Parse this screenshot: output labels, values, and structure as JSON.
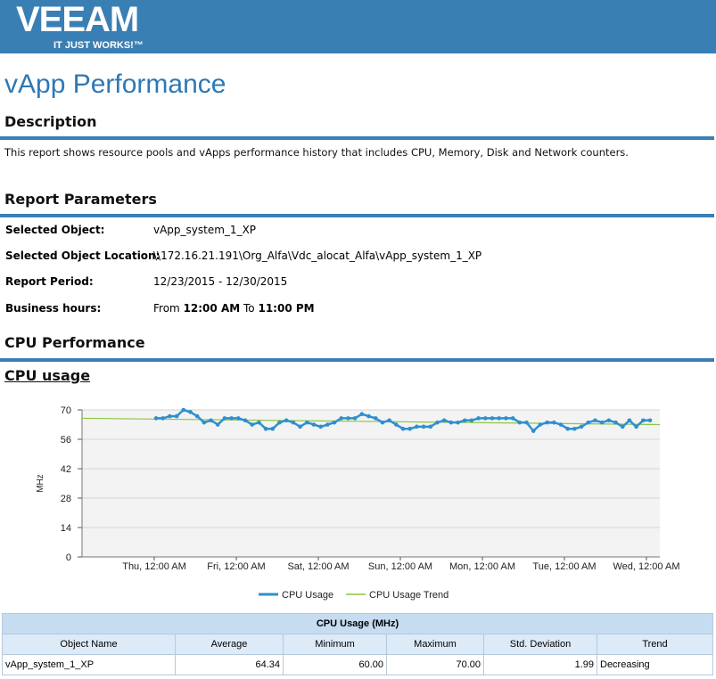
{
  "brand": {
    "logo": "VEEAM",
    "tagline": "IT JUST WORKS!™",
    "color": "#3a7fb4"
  },
  "title": "vApp Performance",
  "description": {
    "heading": "Description",
    "text": "This report shows resource pools and vApps performance history that includes CPU, Memory, Disk and Network counters."
  },
  "parameters": {
    "heading": "Report Parameters",
    "selected_object_label": "Selected Object:",
    "selected_object_value": "vApp_system_1_XP",
    "location_label": "Selected Object Location:",
    "location_value": "\\\\172.16.21.191\\Org_Alfa\\Vdc_alocat_Alfa\\vApp_system_1_XP",
    "period_label": "Report Period:",
    "period_value": "12/23/2015 - 12/30/2015",
    "business_label": "Business hours:",
    "business_from": "From",
    "business_start": "12:00 AM",
    "business_to": "To",
    "business_end": "11:00 PM"
  },
  "cpu": {
    "heading": "CPU Performance",
    "subheading": "CPU usage"
  },
  "chart_data": {
    "type": "line",
    "ylabel": "MHz",
    "ylim": [
      0,
      70
    ],
    "yticks": [
      0,
      14,
      28,
      42,
      56,
      70
    ],
    "xtick_labels": [
      "Thu, 12:00 AM",
      "Fri, 12:00 AM",
      "Sat, 12:00 AM",
      "Sun, 12:00 AM",
      "Mon, 12:00 AM",
      "Tue, 12:00 AM",
      "Wed, 12:00 AM"
    ],
    "grid": true,
    "legend": "bottom",
    "series": [
      {
        "name": "CPU Usage",
        "color": "#2e8fd0",
        "values": [
          66,
          66,
          67,
          67,
          70,
          69,
          67,
          64,
          65,
          63,
          66,
          66,
          66,
          65,
          63,
          64,
          61,
          61,
          64,
          65,
          64,
          62,
          64,
          63,
          62,
          63,
          64,
          66,
          66,
          66,
          68,
          67,
          66,
          64,
          65,
          63,
          61,
          61,
          62,
          62,
          62,
          64,
          65,
          64,
          64,
          65,
          65,
          66,
          66,
          66,
          66,
          66,
          66,
          64,
          64,
          60,
          63,
          64,
          64,
          63,
          61,
          61,
          62,
          64,
          65,
          64,
          65,
          64,
          62,
          65,
          62,
          65,
          65
        ]
      },
      {
        "name": "CPU Usage Trend",
        "color": "#8cc63f",
        "values_endpoints": [
          66,
          63
        ]
      }
    ]
  },
  "table": {
    "caption": "CPU Usage (MHz)",
    "headers": [
      "Object Name",
      "Average",
      "Minimum",
      "Maximum",
      "Std. Deviation",
      "Trend"
    ],
    "rows": [
      [
        "vApp_system_1_XP",
        "64.34",
        "60.00",
        "70.00",
        "1.99",
        "Decreasing"
      ]
    ]
  }
}
